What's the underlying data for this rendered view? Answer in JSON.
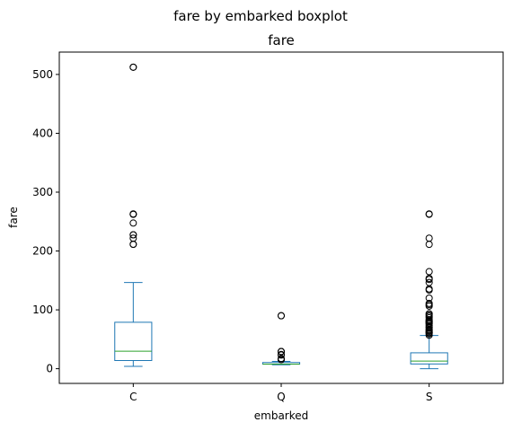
{
  "chart_data": {
    "type": "boxplot",
    "suptitle": "fare by embarked boxplot",
    "title": "fare",
    "xlabel": "embarked",
    "ylabel": "fare",
    "ylim": [
      -25,
      538
    ],
    "yticks": [
      0,
      100,
      200,
      300,
      400,
      500
    ],
    "categories": [
      "C",
      "Q",
      "S"
    ],
    "colors": {
      "box": "#1f77b4",
      "median": "#2ca02c",
      "outlier": "#000000"
    },
    "boxes": [
      {
        "category": "C",
        "whisker_low": 4.0,
        "q1": 13.9,
        "median": 29.7,
        "q3": 78.9,
        "whisker_high": 146.5,
        "outliers": [
          211.3,
          211.5,
          221.8,
          227.5,
          227.5,
          247.5,
          262.4,
          262.4,
          263.0,
          512.3,
          512.3
        ]
      },
      {
        "category": "Q",
        "whisker_low": 6.75,
        "q1": 7.75,
        "median": 7.75,
        "q3": 10.5,
        "whisker_high": 12.35,
        "outliers": [
          15.5,
          15.5,
          17.4,
          23.25,
          24.15,
          29.1,
          29.1,
          29.1,
          90.0,
          90.0
        ]
      },
      {
        "category": "S",
        "whisker_low": 0.0,
        "q1": 8.05,
        "median": 13.0,
        "q3": 27.0,
        "whisker_high": 56.5,
        "outliers": [
          57.0,
          59.4,
          61.2,
          61.4,
          63.4,
          65.0,
          66.6,
          69.55,
          71.0,
          73.5,
          76.3,
          77.3,
          79.2,
          79.65,
          80.0,
          82.2,
          83.2,
          86.5,
          89.1,
          91.1,
          93.5,
          106.4,
          108.9,
          110.9,
          120.0,
          133.7,
          135.6,
          146.5,
          151.55,
          153.5,
          164.9,
          211.3,
          221.8,
          262.4,
          263.0
        ]
      }
    ]
  }
}
